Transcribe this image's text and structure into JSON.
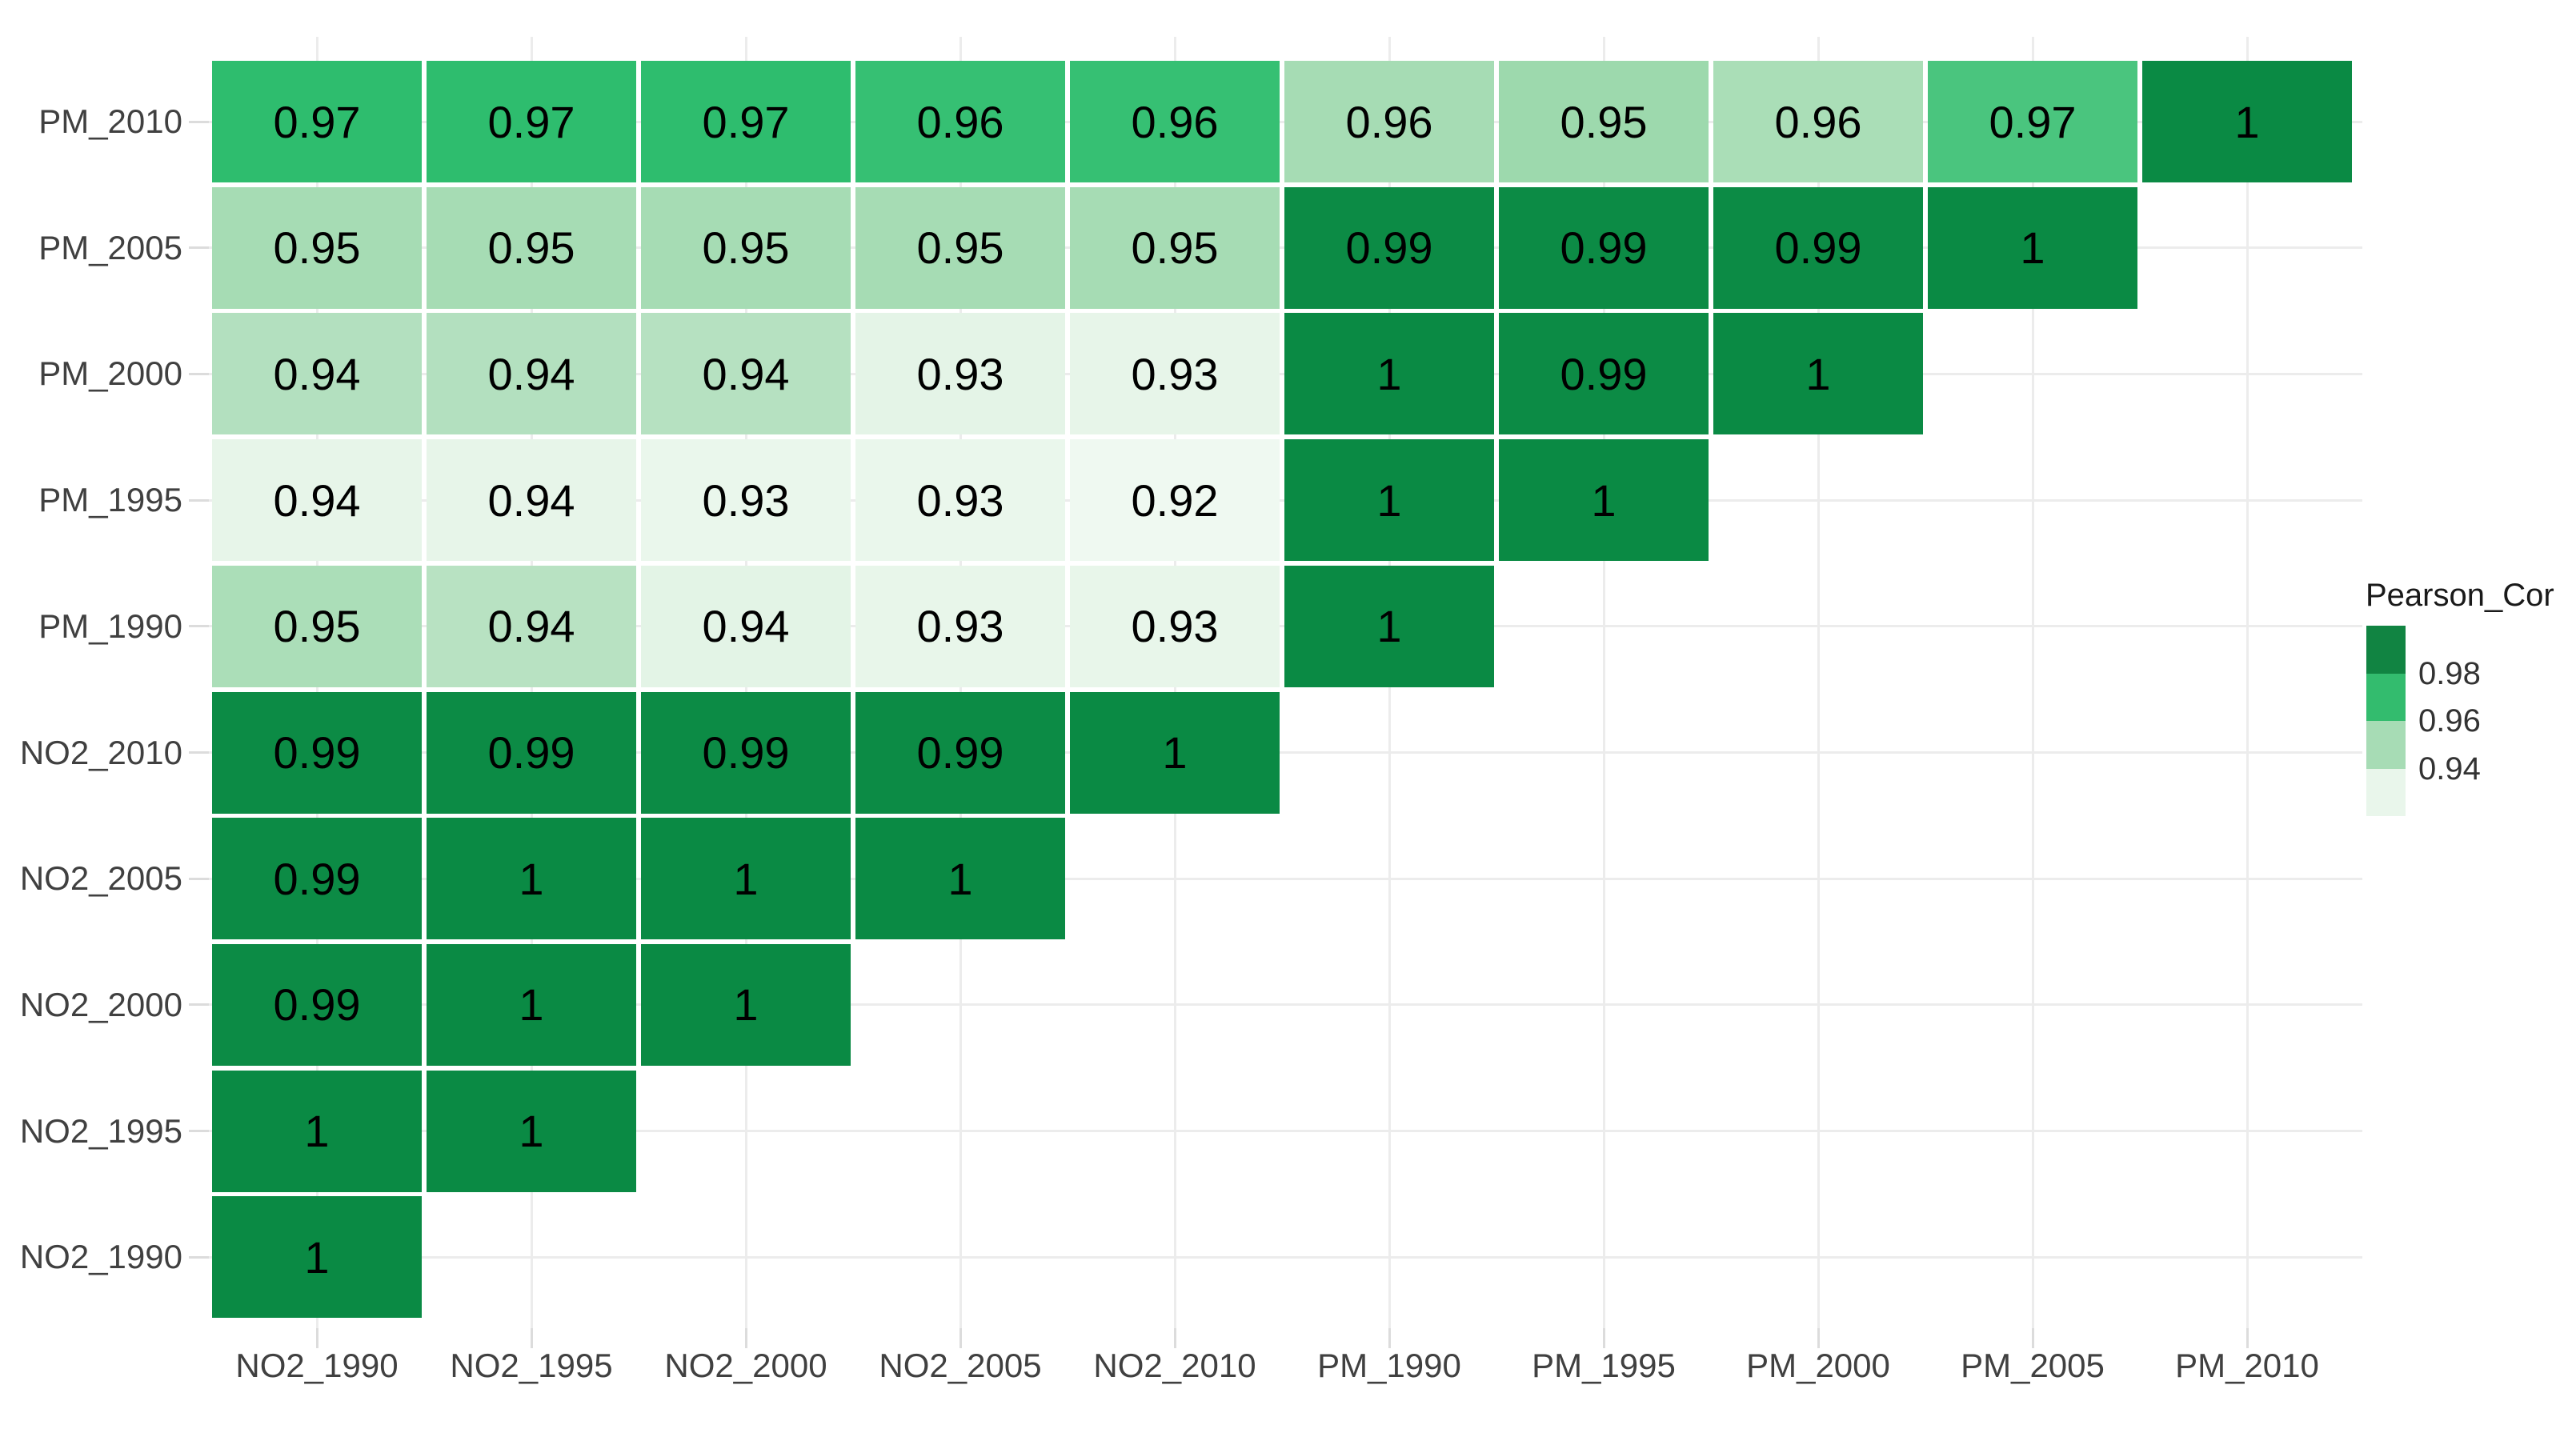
{
  "figure_title": "",
  "colors": {
    "background": "#ffffff",
    "gridline": "#ececec",
    "axis_tick": "#dcdcdc",
    "axis_text": "#404040",
    "cell_text": "#000000",
    "dark_green_high": "#0a8a44",
    "light_green_low": "#eff9f1"
  },
  "chart_data": {
    "type": "heatmap",
    "title": "",
    "subtitle": "",
    "xlabel": "",
    "ylabel": "",
    "grid": "major gridlines on white panel, lower-triangular matrix",
    "legend_position": "right",
    "legend": {
      "title": "Pearson_Cor",
      "tick_labels": [
        "0.98",
        "0.96",
        "0.94"
      ],
      "band_colors": [
        "#118442",
        "#33bc6e",
        "#a7dcb5",
        "#e9f6eb"
      ]
    },
    "x_labels": [
      "NO2_1990",
      "NO2_1995",
      "NO2_2000",
      "NO2_2005",
      "NO2_2010",
      "PM_1990",
      "PM_1995",
      "PM_2000",
      "PM_2005",
      "PM_2010"
    ],
    "y_labels_top_to_bottom": [
      "PM_2010",
      "PM_2005",
      "PM_2000",
      "PM_1995",
      "PM_1990",
      "NO2_2010",
      "NO2_2005",
      "NO2_2000",
      "NO2_1995",
      "NO2_1990"
    ],
    "rows": [
      {
        "y": "PM_2010",
        "cells": [
          [
            "0.97",
            "#2ebd6e"
          ],
          [
            "0.97",
            "#2ebd6e"
          ],
          [
            "0.97",
            "#2ebd6e"
          ],
          [
            "0.96",
            "#36c073"
          ],
          [
            "0.96",
            "#36c073"
          ],
          [
            "0.96",
            "#a6dcb4"
          ],
          [
            "0.95",
            "#9dd9ad"
          ],
          [
            "0.96",
            "#aadeb7"
          ],
          [
            "0.97",
            "#4ac57e"
          ],
          [
            "1",
            "#0a8a44"
          ]
        ]
      },
      {
        "y": "PM_2005",
        "cells": [
          [
            "0.95",
            "#a6dcb4"
          ],
          [
            "0.95",
            "#a6dcb4"
          ],
          [
            "0.95",
            "#a6dcb4"
          ],
          [
            "0.95",
            "#a6dcb4"
          ],
          [
            "0.95",
            "#a6dcb4"
          ],
          [
            "0.99",
            "#0c8b45"
          ],
          [
            "0.99",
            "#0c8b45"
          ],
          [
            "0.99",
            "#0c8b45"
          ],
          [
            "1",
            "#0a8a44"
          ]
        ]
      },
      {
        "y": "PM_2000",
        "cells": [
          [
            "0.94",
            "#b3e0bf"
          ],
          [
            "0.94",
            "#b3e0bf"
          ],
          [
            "0.94",
            "#b6e1c1"
          ],
          [
            "0.93",
            "#e4f4e7"
          ],
          [
            "0.93",
            "#e7f5e9"
          ],
          [
            "1",
            "#0a8a44"
          ],
          [
            "0.99",
            "#0c8b45"
          ],
          [
            "1",
            "#0a8a44"
          ]
        ]
      },
      {
        "y": "PM_1995",
        "cells": [
          [
            "0.94",
            "#e7f5e9"
          ],
          [
            "0.94",
            "#e7f5e9"
          ],
          [
            "0.93",
            "#eaf7ec"
          ],
          [
            "0.93",
            "#eaf7ec"
          ],
          [
            "0.92",
            "#eff9f1"
          ],
          [
            "1",
            "#0a8a44"
          ],
          [
            "1",
            "#0a8a44"
          ]
        ]
      },
      {
        "y": "PM_1990",
        "cells": [
          [
            "0.95",
            "#abdeb8"
          ],
          [
            "0.94",
            "#b8e2c2"
          ],
          [
            "0.94",
            "#e3f4e6"
          ],
          [
            "0.93",
            "#e8f6ea"
          ],
          [
            "0.93",
            "#e8f6ea"
          ],
          [
            "1",
            "#0a8a44"
          ]
        ]
      },
      {
        "y": "NO2_2010",
        "cells": [
          [
            "0.99",
            "#0c8b45"
          ],
          [
            "0.99",
            "#0c8b45"
          ],
          [
            "0.99",
            "#0c8b45"
          ],
          [
            "0.99",
            "#0c8b45"
          ],
          [
            "1",
            "#0a8a44"
          ]
        ]
      },
      {
        "y": "NO2_2005",
        "cells": [
          [
            "0.99",
            "#0c8b45"
          ],
          [
            "1",
            "#0a8a44"
          ],
          [
            "1",
            "#0a8a44"
          ],
          [
            "1",
            "#0a8a44"
          ]
        ]
      },
      {
        "y": "NO2_2000",
        "cells": [
          [
            "0.99",
            "#0c8b45"
          ],
          [
            "1",
            "#0a8a44"
          ],
          [
            "1",
            "#0a8a44"
          ]
        ]
      },
      {
        "y": "NO2_1995",
        "cells": [
          [
            "1",
            "#0a8a44"
          ],
          [
            "1",
            "#0a8a44"
          ]
        ]
      },
      {
        "y": "NO2_1990",
        "cells": [
          [
            "1",
            "#0a8a44"
          ]
        ]
      }
    ]
  }
}
